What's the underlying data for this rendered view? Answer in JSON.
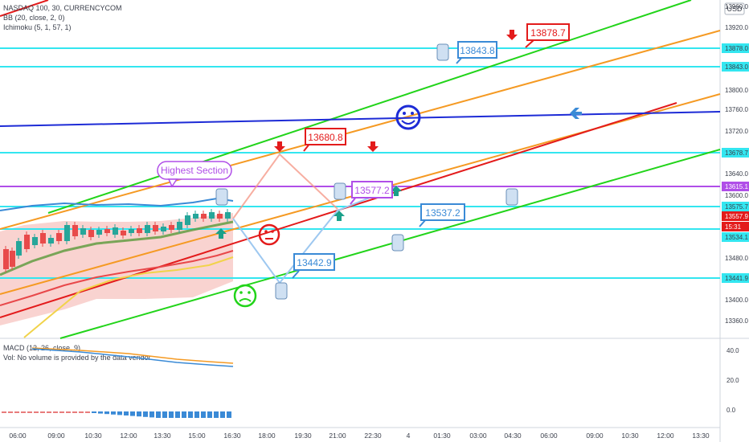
{
  "header": {
    "symbol": "NASDAQ 100, 30, CURRENCYCOM",
    "bb": "BB (20, close, 2, 0)",
    "ichimoku": "Ichimoku (5, 1, 57, 1)",
    "currency": "USD"
  },
  "macd_panel": {
    "title": "MACD (12, 26, close, 9)",
    "volume_note": "Vol: No volume is provided by the data vendor.",
    "ticks": [
      "40.0",
      "20.0",
      "0.0"
    ]
  },
  "price_axis": {
    "ticks": [
      "13960.0",
      "13920.0",
      "13878.0",
      "13843.0",
      "13800.0",
      "13760.0",
      "13720.0",
      "13678.7",
      "13640.0",
      "13615.1",
      "13600.0",
      "13575.7",
      "13557.9",
      "15:31",
      "13534.1",
      "13480.0",
      "13441.9",
      "13400.0",
      "13360.0"
    ]
  },
  "time_axis": {
    "ticks": [
      "06:00",
      "09:00",
      "10:30",
      "12:00",
      "13:30",
      "15:00",
      "16:30",
      "18:00",
      "19:30",
      "21:00",
      "22:30",
      "4",
      "01:30",
      "03:00",
      "04:30",
      "06:00",
      "09:00",
      "10:30",
      "12:00",
      "13:30"
    ]
  },
  "annotations": {
    "highest_section": "Highest Section",
    "c1": "13878.7",
    "c2": "13843.8",
    "c3": "13680.8",
    "c4": "13577.2",
    "c5": "13537.2",
    "c6": "13442.9"
  },
  "colors": {
    "cyan": "#33e6f0",
    "purple": "#b04ee8",
    "green": "#22d41a",
    "orange": "#f59a23",
    "red": "#e31b1b",
    "blue": "#1d2bd6"
  },
  "chart_data": {
    "type": "line",
    "horizontal_levels": [
      13878.0,
      13843.0,
      13678.7,
      13615.1,
      13575.7,
      13534.1,
      13441.9
    ],
    "current_price": 13557.9
  }
}
